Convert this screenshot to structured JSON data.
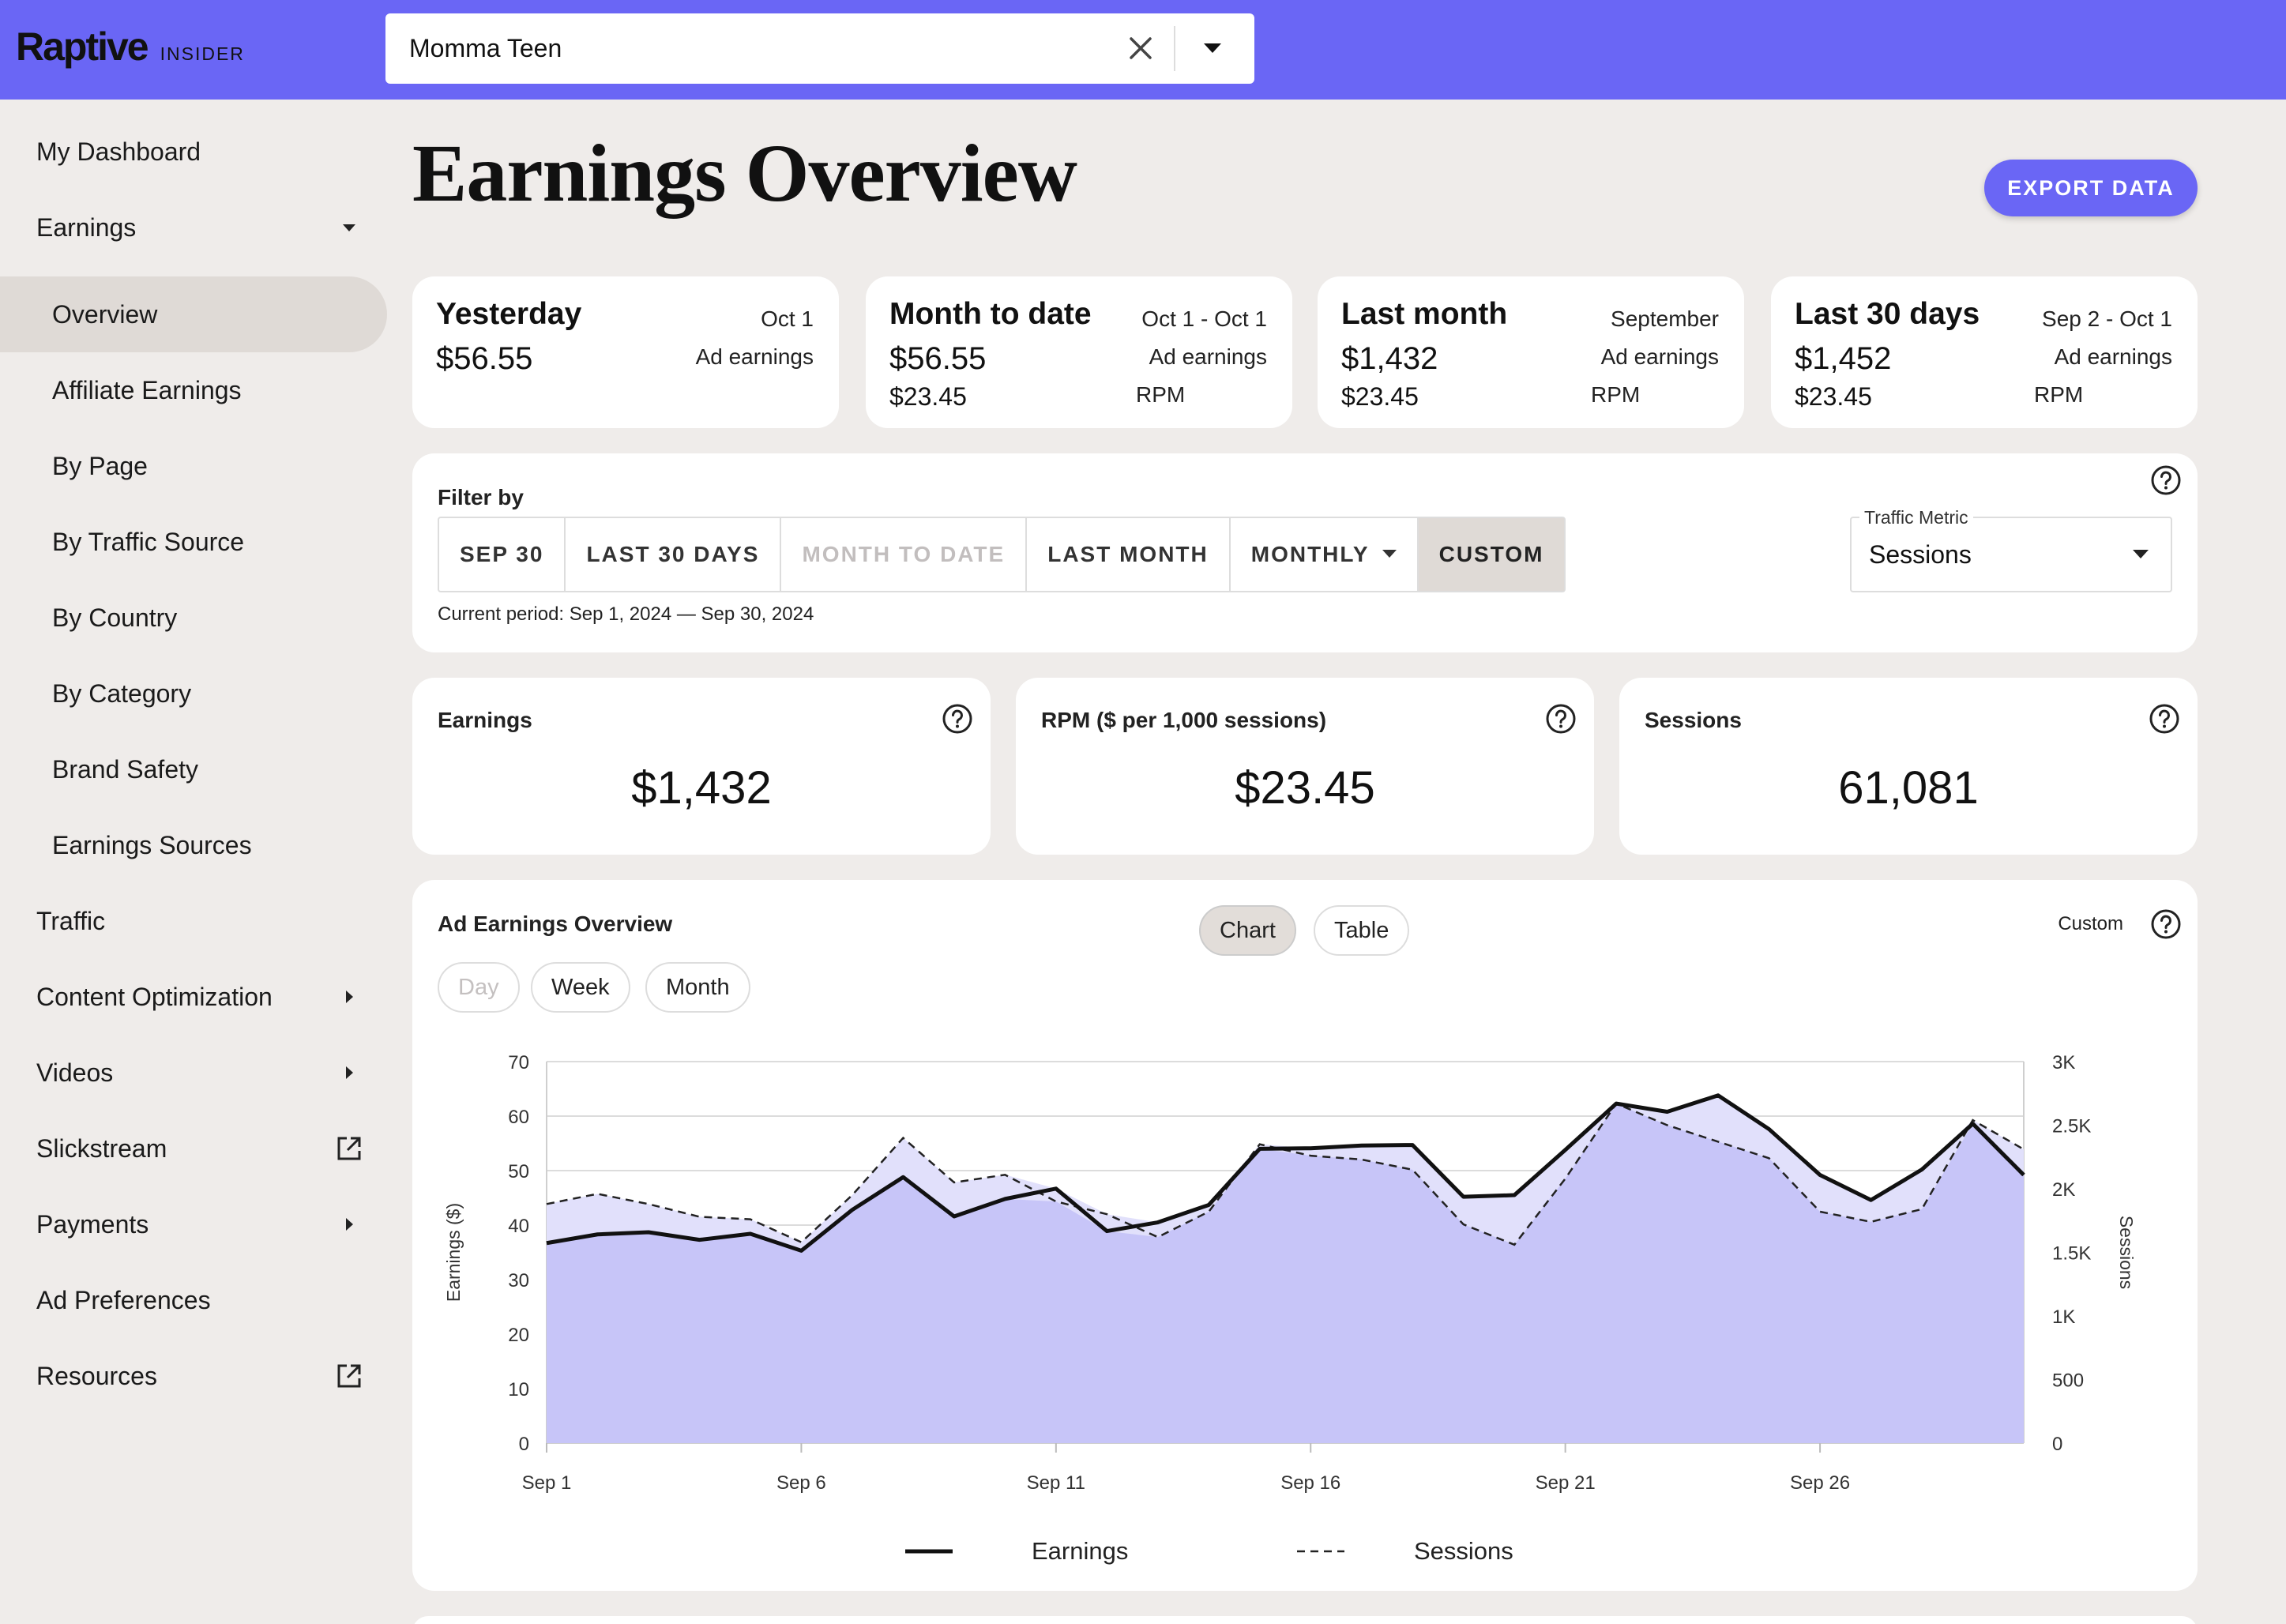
{
  "header": {
    "logo": "Raptive",
    "logo_sub": "INSIDER",
    "site_value": "Momma Teen"
  },
  "sidebar": {
    "items": [
      {
        "label": "My Dashboard"
      },
      {
        "label": "Earnings"
      },
      {
        "label": "Overview"
      },
      {
        "label": "Affiliate Earnings"
      },
      {
        "label": "By Page"
      },
      {
        "label": "By Traffic Source"
      },
      {
        "label": "By Country"
      },
      {
        "label": "By Category"
      },
      {
        "label": "Brand Safety"
      },
      {
        "label": "Earnings Sources"
      },
      {
        "label": "Traffic"
      },
      {
        "label": "Content Optimization"
      },
      {
        "label": "Videos"
      },
      {
        "label": "Slickstream"
      },
      {
        "label": "Payments"
      },
      {
        "label": "Ad Preferences"
      },
      {
        "label": "Resources"
      }
    ]
  },
  "page": {
    "title": "Earnings Overview",
    "export_label": "EXPORT DATA"
  },
  "summary": [
    {
      "title": "Yesterday",
      "period": "Oct 1",
      "value": "$56.55",
      "value_label": "Ad earnings",
      "rpm": "",
      "rpm_label": ""
    },
    {
      "title": "Month to date",
      "period": "Oct 1 - Oct 1",
      "value": "$56.55",
      "value_label": "Ad earnings",
      "rpm": "$23.45",
      "rpm_label": "RPM"
    },
    {
      "title": "Last month",
      "period": "September",
      "value": "$1,432",
      "value_label": "Ad earnings",
      "rpm": "$23.45",
      "rpm_label": "RPM"
    },
    {
      "title": "Last 30 days",
      "period": "Sep 2 - Oct 1",
      "value": "$1,452",
      "value_label": "Ad earnings",
      "rpm": "$23.45",
      "rpm_label": "RPM"
    }
  ],
  "filter": {
    "label": "Filter by",
    "buttons": [
      "SEP 30",
      "LAST 30 DAYS",
      "MONTH TO DATE",
      "LAST MONTH",
      "MONTHLY",
      "CUSTOM"
    ],
    "current_period": "Current period: Sep 1, 2024 — Sep 30, 2024",
    "metric_label": "Traffic Metric",
    "metric_value": "Sessions"
  },
  "stats": [
    {
      "title": "Earnings",
      "value": "$1,432"
    },
    {
      "title": "RPM ($ per 1,000 sessions)",
      "value": "$23.45"
    },
    {
      "title": "Sessions",
      "value": "61,081"
    }
  ],
  "chart_section": {
    "title": "Ad Earnings Overview",
    "view_toggle": [
      "Chart",
      "Table"
    ],
    "granularity": [
      "Day",
      "Week",
      "Month"
    ],
    "custom_label": "Custom"
  },
  "colors": {
    "accent": "#6a66f5",
    "area_fill": "#c7c5f8",
    "area_light": "#e1e0fb"
  },
  "chart_data": {
    "type": "area",
    "x": [
      "Sep 1",
      "Sep 2",
      "Sep 3",
      "Sep 4",
      "Sep 5",
      "Sep 6",
      "Sep 7",
      "Sep 8",
      "Sep 9",
      "Sep 10",
      "Sep 11",
      "Sep 12",
      "Sep 13",
      "Sep 14",
      "Sep 15",
      "Sep 16",
      "Sep 17",
      "Sep 18",
      "Sep 19",
      "Sep 20",
      "Sep 21",
      "Sep 22",
      "Sep 23",
      "Sep 24",
      "Sep 25",
      "Sep 26",
      "Sep 27",
      "Sep 28",
      "Sep 29",
      "Sep 30"
    ],
    "x_tick_labels": [
      "Sep 1",
      "Sep 6",
      "Sep 11",
      "Sep 16",
      "Sep 21",
      "Sep 26"
    ],
    "series": [
      {
        "name": "Earnings",
        "axis": "left",
        "style": "solid",
        "values": [
          36.7,
          38.3,
          38.7,
          37.3,
          38.4,
          35.3,
          42.8,
          48.8,
          41.6,
          44.8,
          46.7,
          38.9,
          40.5,
          43.7,
          54.0,
          54.1,
          54.6,
          54.7,
          45.2,
          45.5,
          53.8,
          62.3,
          60.8,
          63.8,
          57.6,
          49.2,
          44.6,
          50.2,
          58.6,
          49.2
        ]
      },
      {
        "name": "Sessions",
        "axis": "right",
        "style": "dashed",
        "values": [
          1880,
          1960,
          1880,
          1780,
          1760,
          1580,
          1950,
          2400,
          2050,
          2110,
          1900,
          1800,
          1620,
          1820,
          2350,
          2260,
          2230,
          2150,
          1720,
          1560,
          2080,
          2670,
          2500,
          2370,
          2240,
          1820,
          1740,
          1840,
          2540,
          2310
        ]
      }
    ],
    "ylabel": "Earnings ($)",
    "ylim": [
      0,
      70
    ],
    "yticks": [
      0,
      10,
      20,
      30,
      40,
      50,
      60,
      70
    ],
    "y2label": "Sessions",
    "y2lim": [
      0,
      3000
    ],
    "y2ticks": [
      0,
      500,
      1000,
      1500,
      2000,
      2500,
      3000
    ],
    "y2tick_labels": [
      "0",
      "500",
      "1K",
      "1.5K",
      "2K",
      "2.5K",
      "3K"
    ],
    "grid": true,
    "legend": "bottom-center"
  }
}
